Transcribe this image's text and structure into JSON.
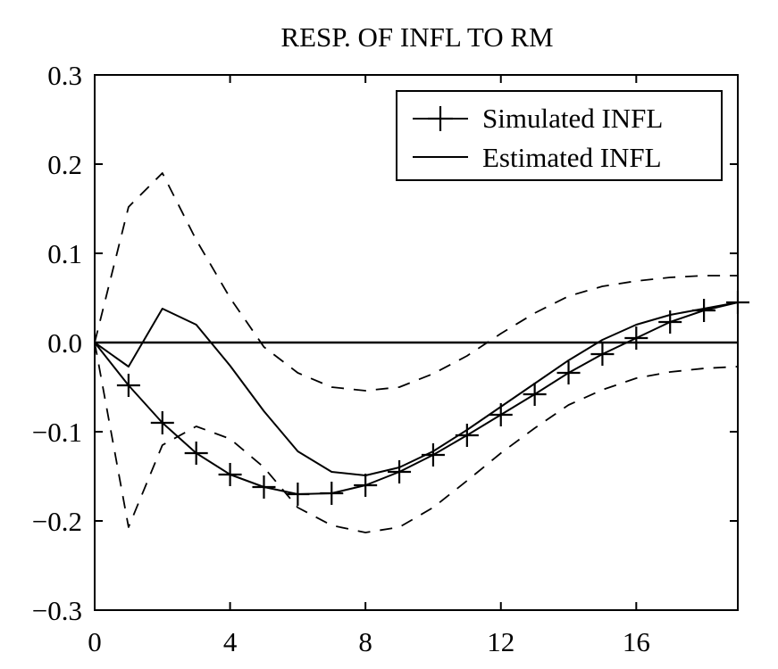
{
  "chart_data": {
    "type": "line",
    "title": "RESP. OF INFL TO RM",
    "xlabel": "",
    "ylabel": "",
    "xlim": [
      0,
      19
    ],
    "ylim": [
      -0.3,
      0.3
    ],
    "x_ticks": [
      0,
      4,
      8,
      12,
      16
    ],
    "x_tick_labels": [
      "0",
      "4",
      "8",
      "12",
      "16"
    ],
    "y_ticks": [
      0.3,
      0.2,
      0.1,
      0.0,
      -0.1,
      -0.2,
      -0.3
    ],
    "y_tick_labels": [
      "0.3",
      "0.2",
      "0.1",
      "0.0",
      "−0.1",
      "−0.2",
      "−0.3"
    ],
    "grid": false,
    "zero_line": true,
    "legend_position": "top-right",
    "legend": [
      {
        "label": "Simulated INFL",
        "marker": "plus",
        "line": "solid"
      },
      {
        "label": "Estimated INFL",
        "marker": "none",
        "line": "solid"
      }
    ],
    "series": [
      {
        "name": "Simulated INFL",
        "style": "solid-plus",
        "x": [
          0,
          1,
          2,
          3,
          4,
          5,
          6,
          7,
          8,
          9,
          10,
          11,
          12,
          13,
          14,
          15,
          16,
          17,
          18,
          19
        ],
        "y": [
          0.0,
          -0.048,
          -0.09,
          -0.124,
          -0.148,
          -0.162,
          -0.17,
          -0.169,
          -0.16,
          -0.145,
          -0.126,
          -0.104,
          -0.081,
          -0.058,
          -0.034,
          -0.013,
          0.005,
          0.023,
          0.036,
          0.045
        ]
      },
      {
        "name": "Estimated INFL",
        "style": "solid",
        "x": [
          0,
          1,
          2,
          3,
          4,
          5,
          6,
          7,
          8,
          9,
          10,
          11,
          12,
          13,
          14,
          15,
          16,
          17,
          18,
          19
        ],
        "y": [
          0.0,
          -0.027,
          0.038,
          0.02,
          -0.026,
          -0.077,
          -0.122,
          -0.145,
          -0.149,
          -0.14,
          -0.122,
          -0.098,
          -0.072,
          -0.046,
          -0.02,
          0.003,
          0.02,
          0.031,
          0.038,
          0.045
        ]
      },
      {
        "style": "dashed",
        "x": [
          0,
          1,
          2,
          3,
          4,
          5,
          6,
          7,
          8,
          9,
          10,
          11,
          12,
          13,
          14,
          15,
          16,
          17,
          18,
          19
        ],
        "y": [
          0.0,
          0.152,
          0.19,
          0.115,
          0.05,
          -0.005,
          -0.034,
          -0.05,
          -0.054,
          -0.05,
          -0.035,
          -0.015,
          0.01,
          0.033,
          0.052,
          0.063,
          0.069,
          0.073,
          0.075,
          0.075
        ]
      },
      {
        "style": "dashed",
        "x": [
          0,
          1,
          2,
          3,
          4,
          5,
          6,
          7,
          8,
          9,
          10,
          11,
          12,
          13,
          14,
          15,
          16,
          17,
          18,
          19
        ],
        "y": [
          0.0,
          -0.207,
          -0.115,
          -0.094,
          -0.108,
          -0.14,
          -0.185,
          -0.205,
          -0.213,
          -0.207,
          -0.185,
          -0.155,
          -0.124,
          -0.096,
          -0.07,
          -0.053,
          -0.04,
          -0.033,
          -0.029,
          -0.027
        ]
      }
    ]
  }
}
